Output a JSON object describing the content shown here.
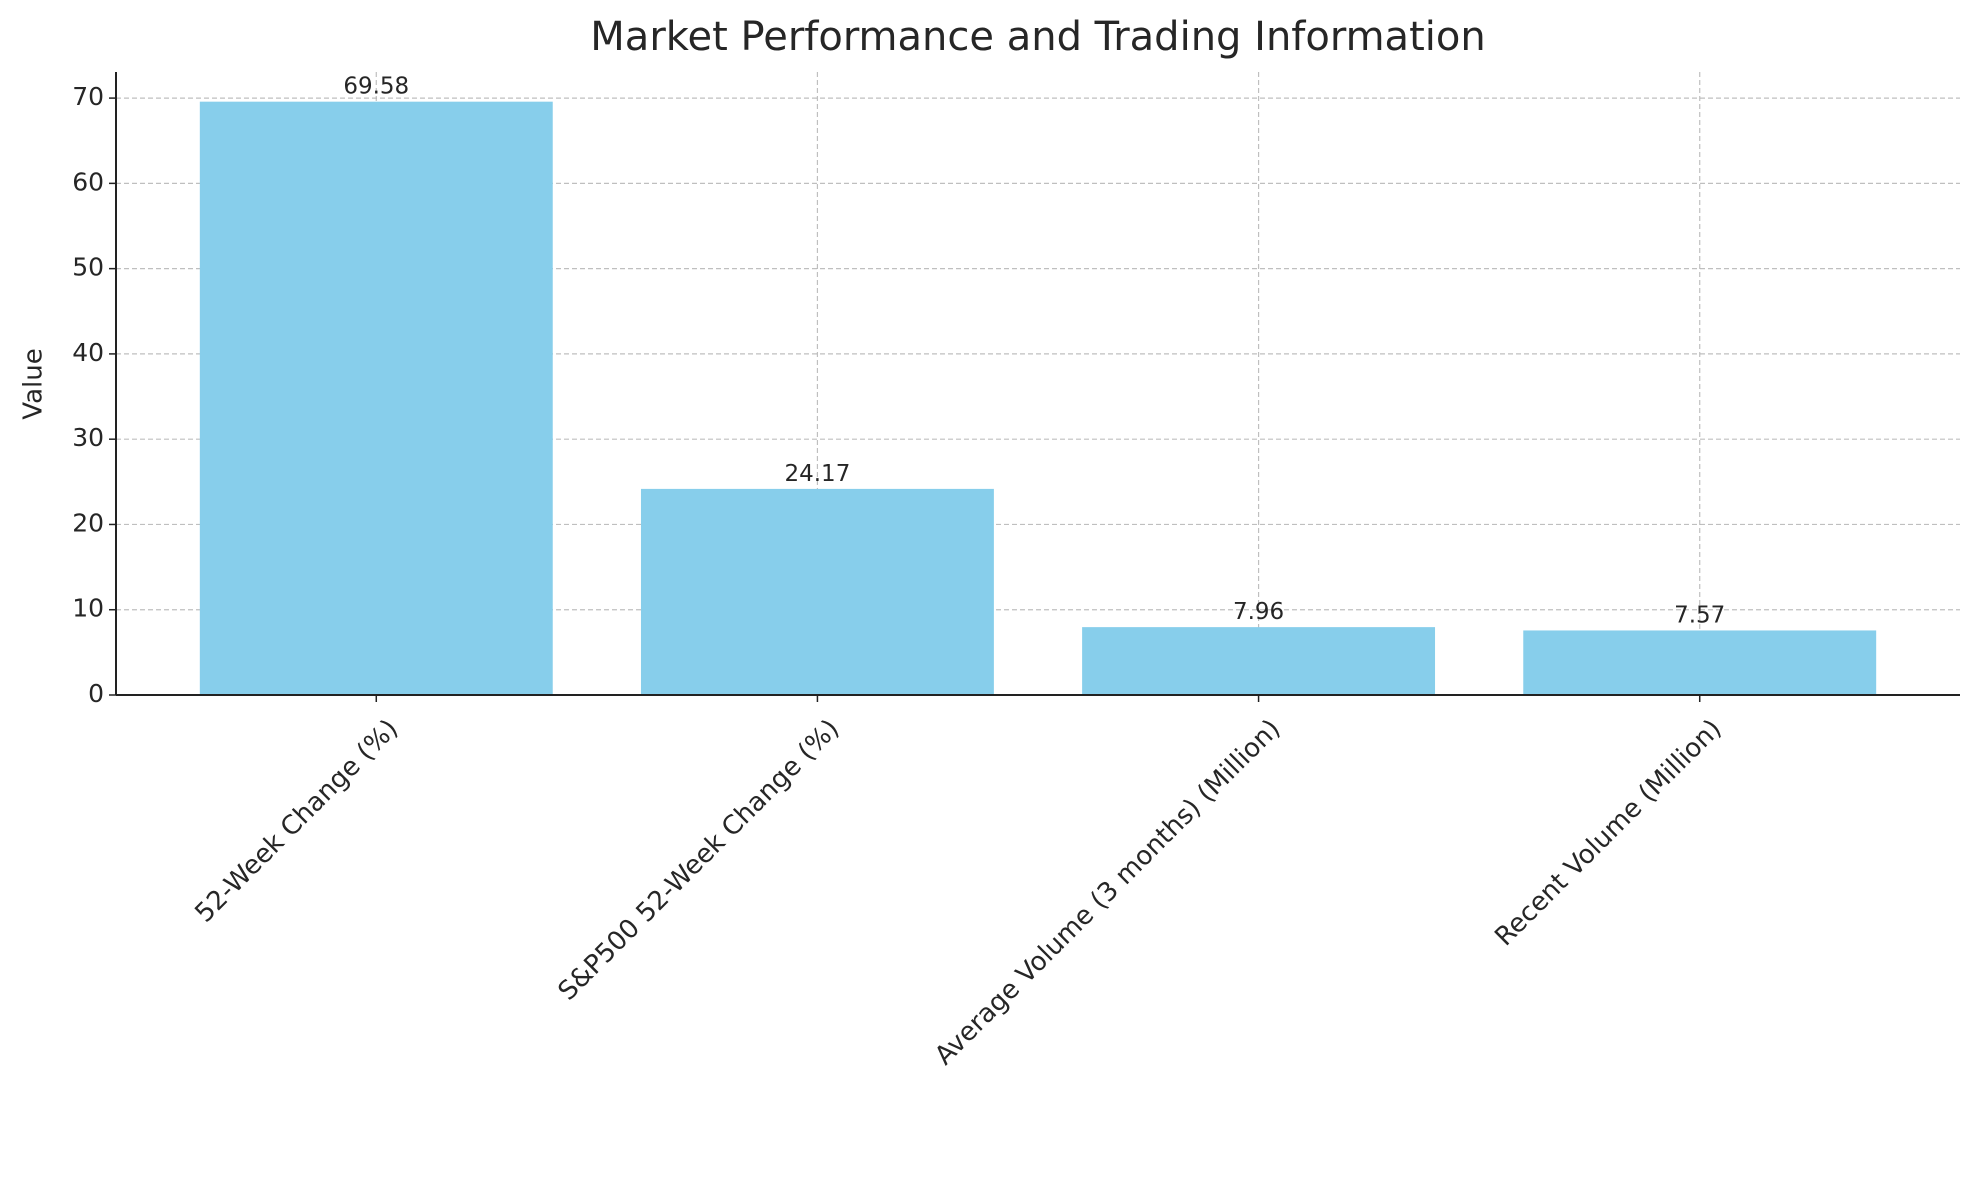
{
  "chart_data": {
    "type": "bar",
    "title": "Market Performance and Trading Information",
    "y_label": "Value",
    "categories": [
      "52-Week Change (%)",
      "S&P500 52-Week Change (%)",
      "Average Volume (3 months) (Million)",
      "Recent Volume (Million)"
    ],
    "values": [
      69.58,
      24.17,
      7.96,
      7.57
    ],
    "color": "#87ceeb",
    "ylim": [
      0,
      73.06
    ],
    "yticks": [
      0,
      10,
      20,
      30,
      40,
      50,
      60,
      70
    ],
    "grid": true
  }
}
